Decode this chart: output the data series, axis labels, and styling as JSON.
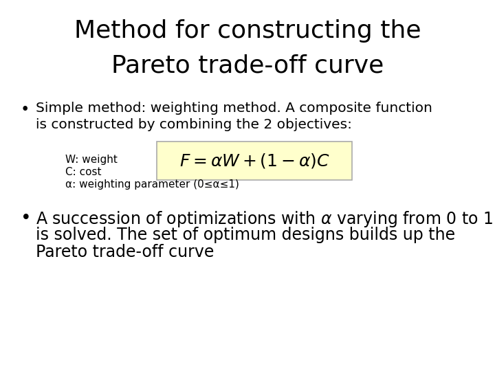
{
  "title_line1": "Method for constructing the",
  "title_line2": "Pareto trade-off curve",
  "title_fontsize": 26,
  "title_color": "#000000",
  "bg_color": "#ffffff",
  "bullet1_line1": "Simple method: weighting method. A composite function",
  "bullet1_line2": "is constructed by combining the 2 objectives:",
  "formula_box_color": "#ffffcc",
  "formula_box_edge": "#aaaaaa",
  "note1": "W: weight",
  "note2": "C: cost",
  "note3": "α: weighting parameter (0≤α≤1)",
  "bullet2_line1": "A succession of optimizations with α varying from 0 to 1",
  "bullet2_line2": "is solved. The set of optimum designs builds up the",
  "bullet2_line3": "Pareto trade-off curve",
  "body_fontsize": 14.5,
  "note_fontsize": 11,
  "formula_fontsize": 18,
  "bullet2_fontsize": 17
}
